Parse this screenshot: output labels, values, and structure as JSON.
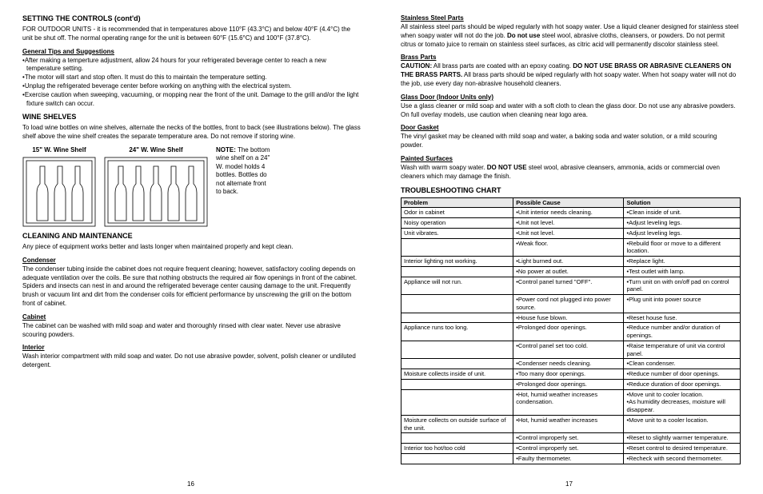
{
  "left": {
    "heading1": "SETTING THE CONTROLS (cont'd)",
    "outdoor_para": "FOR OUTDOOR UNITS - it is recommended that in temperatures above 110°F (43.3°C) and below 40°F (4.4°C) the unit be shut off. The normal operating range for the unit is between 60°F (15.6°C) and 100°F (37.8°C).",
    "tips_heading": "General Tips and Suggestions",
    "tips": [
      "After making a temperture adjustment, allow 24 hours for your refrigerated beverage center to reach a new temperature setting.",
      "The motor will start and stop often. It must do this to maintain the temperature setting.",
      "Unplug the refrigerated beverage center before working on anything with the electrical system.",
      "Exercise caution when sweeping, vacuuming, or mopping near the front of the unit. Damage to the grill and/or the light fixture switch can occur."
    ],
    "heading2": "WINE SHELVES",
    "wine_para": "To load wine bottles on wine shelves, alternate the necks of the bottles, front to back (see illustrations below). The glass shelf above the wine shelf creates the separate temperature area. Do not remove if storing wine.",
    "shelf15_caption": "15\" W. Wine Shelf",
    "shelf24_caption": "24\" W. Wine Shelf",
    "shelf_note_bold": "NOTE:",
    "shelf_note": " The bottom wine shelf on a 24\" W. model holds 4 bottles. Bottles do not alternate front to back.",
    "heading3": "CLEANING AND MAINTENANCE",
    "clean_para": "Any piece of equipment works better and lasts longer when maintained properly and kept clean.",
    "condenser_h": "Condenser",
    "condenser_p": "The condenser tubing inside the cabinet does not require frequent cleaning; however, satisfactory cooling depends on adequate ventilation over the coils. Be sure that nothing obstructs the required air flow openings in front of the cabinet. Spiders and insects can nest in and around the refrigerated beverage center causing damage to the unit. Frequently brush or vacuum lint and dirt from the condenser coils for efficient performance by unscrewing the grill on the bottom front of cabinet.",
    "cabinet_h": "Cabinet",
    "cabinet_p": "The cabinet can be washed with mild soap and water and thoroughly rinsed with clear water.  Never use abrasive scouring powders.",
    "interior_h": "Interior",
    "interior_p": "Wash interior compartment with mild soap and water. Do not use abrasive powder, solvent, polish cleaner or undiluted detergent.",
    "pagenum": "16"
  },
  "right": {
    "ss_h": "Stainless Steel Parts",
    "ss_p1": "All stainless steel parts should be wiped regularly with hot soapy water.  Use a liquid cleaner designed for stainless steel when soapy water will not do the job.  ",
    "ss_bold": "Do not use",
    "ss_p2": " steel wool, abrasive cloths, cleansers, or powders.  Do not permit citrus or tomato juice to remain on stainless steel surfaces, as citric acid will permanently discolor stainless steel.",
    "brass_h": "Brass Parts",
    "brass_caution": "CAUTION:",
    "brass_p1": "    All brass parts are coated with an epoxy coating.  ",
    "brass_bold": "DO NOT USE BRASS OR ABRASIVE CLEANERS ON THE BRASS PARTS.",
    "brass_p2": "  All brass parts should be wiped regularly with hot soapy water.  When hot soapy water will not do the job, use every day non-abrasive household cleaners.",
    "glass_h": "Glass Door (Indoor Units only)",
    "glass_p": "Use a glass cleaner or mild soap and water with a soft cloth to clean the glass door.  Do not use any abrasive powders. On full overlay models, use caution when cleaning near logo area.",
    "gasket_h": "Door Gasket",
    "gasket_p": "The vinyl gasket may be cleaned with mild soap and water, a baking soda and water solution, or a mild scouring powder.",
    "painted_h": "Painted Surfaces",
    "painted_p1": "Wash with warm soapy water.  ",
    "painted_bold": "DO NOT USE",
    "painted_p2": " steel wool, abrasive cleansers, ammonia, acids or commercial oven cleaners which may damage the finish.",
    "trouble_h": "TROUBLESHOOTING CHART",
    "th1": "Problem",
    "th2": "Possible Cause",
    "th3": "Solution",
    "rows": [
      [
        "Odor in cabinet",
        "•Unit interior needs cleaning.",
        "•Clean inside of unit."
      ],
      [
        "Noisy operation",
        "•Unit not level.",
        "•Adjust leveling legs."
      ],
      [
        "Unit vibrates.",
        "•Unit not level.",
        "•Adjust leveling legs."
      ],
      [
        "",
        "•Weak floor.",
        "•Rebuild floor or move to a different location."
      ],
      [
        "Interior lighting not working.",
        "•Light burned out.",
        "•Replace light."
      ],
      [
        "",
        "•No power at outlet.",
        "•Test outlet with lamp."
      ],
      [
        "Appliance will not run.",
        "•Control panel turned \"OFF\".",
        "•Turn unit on with on/off pad on control panel."
      ],
      [
        "",
        "•Power cord not plugged into power source.",
        "•Plug unit into power source"
      ],
      [
        "",
        "•House fuse blown.",
        "•Reset house fuse."
      ],
      [
        "Appliance runs too long.",
        "•Prolonged door openings.",
        "•Reduce number and/or duration of openings."
      ],
      [
        "",
        "•Control panel set too cold.",
        "•Raise temperature of unit via control panel."
      ],
      [
        "",
        "•Condenser needs cleaning.",
        "•Clean condenser."
      ],
      [
        "Moisture collects inside of unit.",
        "•Too many door openings.",
        "•Reduce number of door openings."
      ],
      [
        "",
        "•Prolonged door openings.",
        "•Reduce duration of door openings."
      ],
      [
        "",
        "•Hot, humid weather increases condensation.",
        "•Move unit to cooler location.\n•As humidity decreases, moisture will disappear."
      ],
      [
        "Moisture collects on outside surface of the unit.",
        "•Hot, humid weather increases",
        "•Move unit to a cooler location."
      ],
      [
        "",
        "•Control improperly set.",
        "•Reset to slightly warmer temperature."
      ],
      [
        "Interior too hot/too cold",
        "•Control improperly set.",
        "•Reset control to desired temperature."
      ],
      [
        "",
        "•Faulty thermometer.",
        "•Recheck with second thermometer."
      ]
    ],
    "pagenum": "17"
  },
  "colors": {
    "text": "#000000",
    "bg": "#ffffff",
    "th_bg": "#e8e8e8",
    "border": "#000000"
  }
}
